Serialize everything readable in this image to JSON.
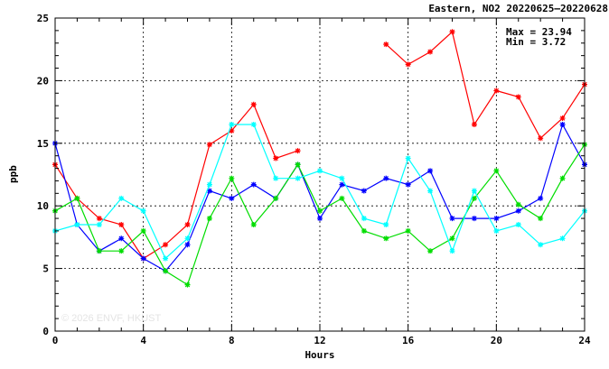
{
  "chart_data": {
    "type": "line",
    "title": "Eastern, NO2 20220625–20220628",
    "xlabel": "Hours",
    "ylabel": "ppb",
    "xlim": [
      0,
      24
    ],
    "ylim": [
      0,
      25
    ],
    "xticks": [
      0,
      4,
      8,
      12,
      16,
      20,
      24
    ],
    "yticks": [
      0,
      5,
      10,
      15,
      20,
      25
    ],
    "grid": true,
    "stats": {
      "max_label": "Max = 23.94",
      "min_label": "Min =  3.72"
    },
    "watermark": "© 2026  ENVF, HKUST",
    "x": [
      0,
      1,
      2,
      3,
      4,
      5,
      6,
      7,
      8,
      9,
      10,
      11,
      12,
      13,
      14,
      15,
      16,
      17,
      18,
      19,
      20,
      21,
      22,
      23,
      24
    ],
    "series": [
      {
        "color": "#ff0000",
        "values": [
          13.3,
          10.6,
          9.0,
          8.5,
          5.8,
          6.9,
          8.5,
          14.9,
          16.0,
          18.1,
          13.8,
          14.4,
          null,
          null,
          null,
          22.9,
          21.3,
          22.3,
          23.9,
          16.5,
          19.2,
          18.7,
          15.4,
          17.0,
          19.7
        ]
      },
      {
        "color": "#0000ff",
        "values": [
          15.0,
          8.5,
          6.4,
          7.4,
          5.8,
          4.8,
          6.9,
          11.2,
          10.6,
          11.7,
          10.6,
          13.3,
          9.0,
          11.7,
          11.2,
          12.2,
          11.7,
          12.8,
          9.0,
          9.0,
          9.0,
          9.6,
          10.6,
          16.5,
          13.3
        ]
      },
      {
        "color": "#00dd00",
        "values": [
          9.6,
          10.6,
          6.4,
          6.4,
          8.0,
          4.8,
          3.7,
          9.0,
          12.2,
          8.5,
          10.6,
          13.3,
          9.6,
          10.6,
          8.0,
          7.4,
          8.0,
          6.4,
          7.4,
          10.6,
          12.8,
          10.1,
          9.0,
          12.2,
          14.9
        ]
      },
      {
        "color": "#00ffff",
        "values": [
          8.0,
          8.5,
          8.5,
          10.6,
          9.6,
          5.8,
          7.4,
          11.7,
          16.5,
          16.5,
          12.2,
          12.2,
          12.8,
          12.2,
          9.0,
          8.5,
          13.8,
          11.2,
          6.4,
          11.2,
          8.0,
          8.5,
          6.9,
          7.4,
          9.6
        ]
      }
    ]
  }
}
